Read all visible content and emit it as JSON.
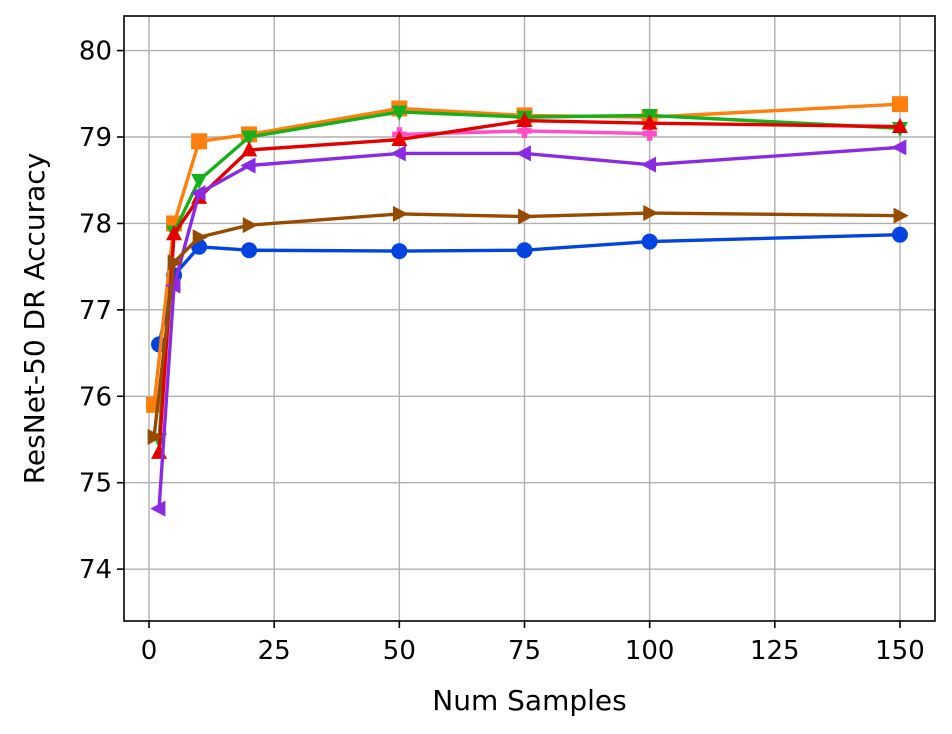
{
  "chart_data": {
    "type": "line",
    "xlabel": "Num Samples",
    "ylabel": "ResNet-50 DR Accuracy",
    "xlim": [
      -5,
      157
    ],
    "ylim": [
      73.4,
      80.4
    ],
    "xticks": [
      0,
      25,
      50,
      75,
      100,
      125,
      150
    ],
    "yticks": [
      74,
      75,
      76,
      77,
      78,
      79,
      80
    ],
    "grid": true,
    "series": [
      {
        "color": "#0343df",
        "marker": "circle",
        "x": [
          2,
          5,
          10,
          20,
          50,
          75,
          100,
          150
        ],
        "y": [
          76.6,
          77.4,
          77.73,
          77.69,
          77.68,
          77.69,
          77.79,
          77.87
        ]
      },
      {
        "color": "#ff7f0e",
        "marker": "square",
        "x": [
          1,
          5,
          10,
          20,
          50,
          75,
          100,
          150
        ],
        "y": [
          75.9,
          78.0,
          78.95,
          79.03,
          79.33,
          79.25,
          79.23,
          79.38
        ]
      },
      {
        "color": "#15b01a",
        "marker": "triangle-down",
        "x": [
          2,
          5,
          10,
          20,
          50,
          75,
          100,
          150
        ],
        "y": [
          75.5,
          77.9,
          78.5,
          79.0,
          79.29,
          79.23,
          79.25,
          79.1
        ]
      },
      {
        "color": "#ff4fc8",
        "marker": "plus",
        "x": [
          50,
          75,
          100
        ],
        "y": [
          79.03,
          79.07,
          79.04
        ]
      },
      {
        "color": "#e50000",
        "marker": "triangle-up",
        "x": [
          2,
          5,
          10,
          20,
          50,
          75,
          100,
          150
        ],
        "y": [
          75.35,
          77.88,
          78.3,
          78.85,
          78.97,
          79.19,
          79.16,
          79.12
        ]
      },
      {
        "color": "#8a2be2",
        "marker": "triangle-left",
        "x": [
          2,
          5,
          10,
          20,
          50,
          75,
          100,
          150
        ],
        "y": [
          74.7,
          77.28,
          78.35,
          78.67,
          78.81,
          78.81,
          78.68,
          78.88
        ]
      },
      {
        "color": "#964b00",
        "marker": "triangle-right",
        "x": [
          1,
          5,
          10,
          20,
          50,
          75,
          100,
          150
        ],
        "y": [
          75.53,
          77.55,
          77.84,
          77.98,
          78.11,
          78.08,
          78.12,
          78.09
        ]
      }
    ]
  }
}
